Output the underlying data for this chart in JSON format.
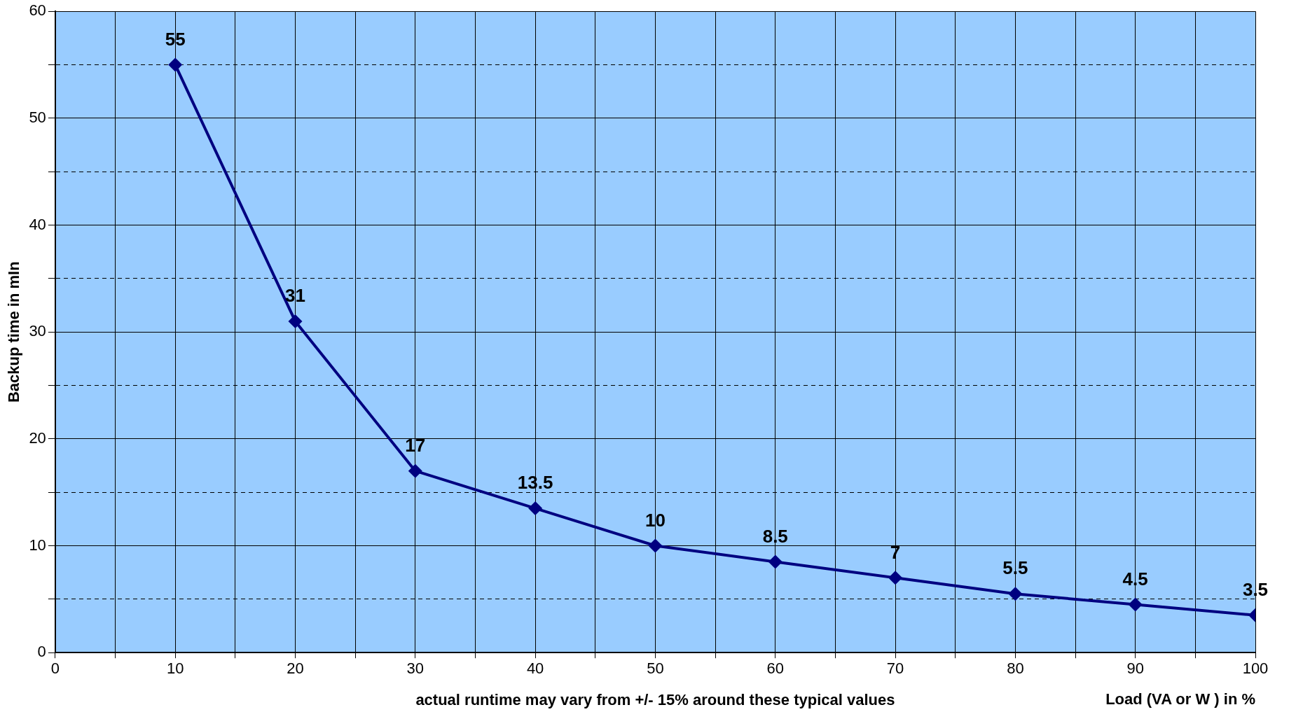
{
  "chart_data": {
    "type": "line",
    "xlabel": "Load (VA or W ) in %",
    "ylabel": "Backup time in mIn",
    "annotations": [
      "actual runtime may vary from +/- 15% around these typical values"
    ],
    "x": [
      10,
      20,
      30,
      40,
      50,
      60,
      70,
      80,
      90,
      100
    ],
    "series": [
      {
        "color": "#000080",
        "values": [
          55,
          31,
          17,
          13.5,
          10,
          8.5,
          7,
          5.5,
          4.5,
          3.5
        ]
      }
    ],
    "xlim": [
      0,
      100
    ],
    "xticks": [
      0,
      {
        "value": 5,
        "label": null
      },
      10,
      {
        "value": 15,
        "label": null
      },
      20,
      {
        "value": 25,
        "label": null
      },
      30,
      {
        "value": 35,
        "label": null
      },
      40,
      {
        "value": 45,
        "label": null
      },
      50,
      {
        "value": 55,
        "label": null
      },
      60,
      {
        "value": 65,
        "label": null
      },
      70,
      {
        "value": 75,
        "label": null
      },
      80,
      {
        "value": 85,
        "label": null
      },
      90,
      {
        "value": 95,
        "label": null
      },
      100
    ],
    "ylim": [
      0,
      60
    ],
    "yticks": [
      0,
      {
        "value": 5,
        "label": null
      },
      10,
      {
        "value": 15,
        "label": null
      },
      20,
      {
        "value": 25,
        "label": null
      },
      30,
      {
        "value": 35,
        "label": null
      },
      40,
      {
        "value": 45,
        "label": null
      },
      50,
      {
        "value": 55,
        "label": null
      },
      60
    ],
    "grid": true,
    "legend": false,
    "marker": "diamond",
    "line_style": "solid",
    "data_labels": true
  }
}
